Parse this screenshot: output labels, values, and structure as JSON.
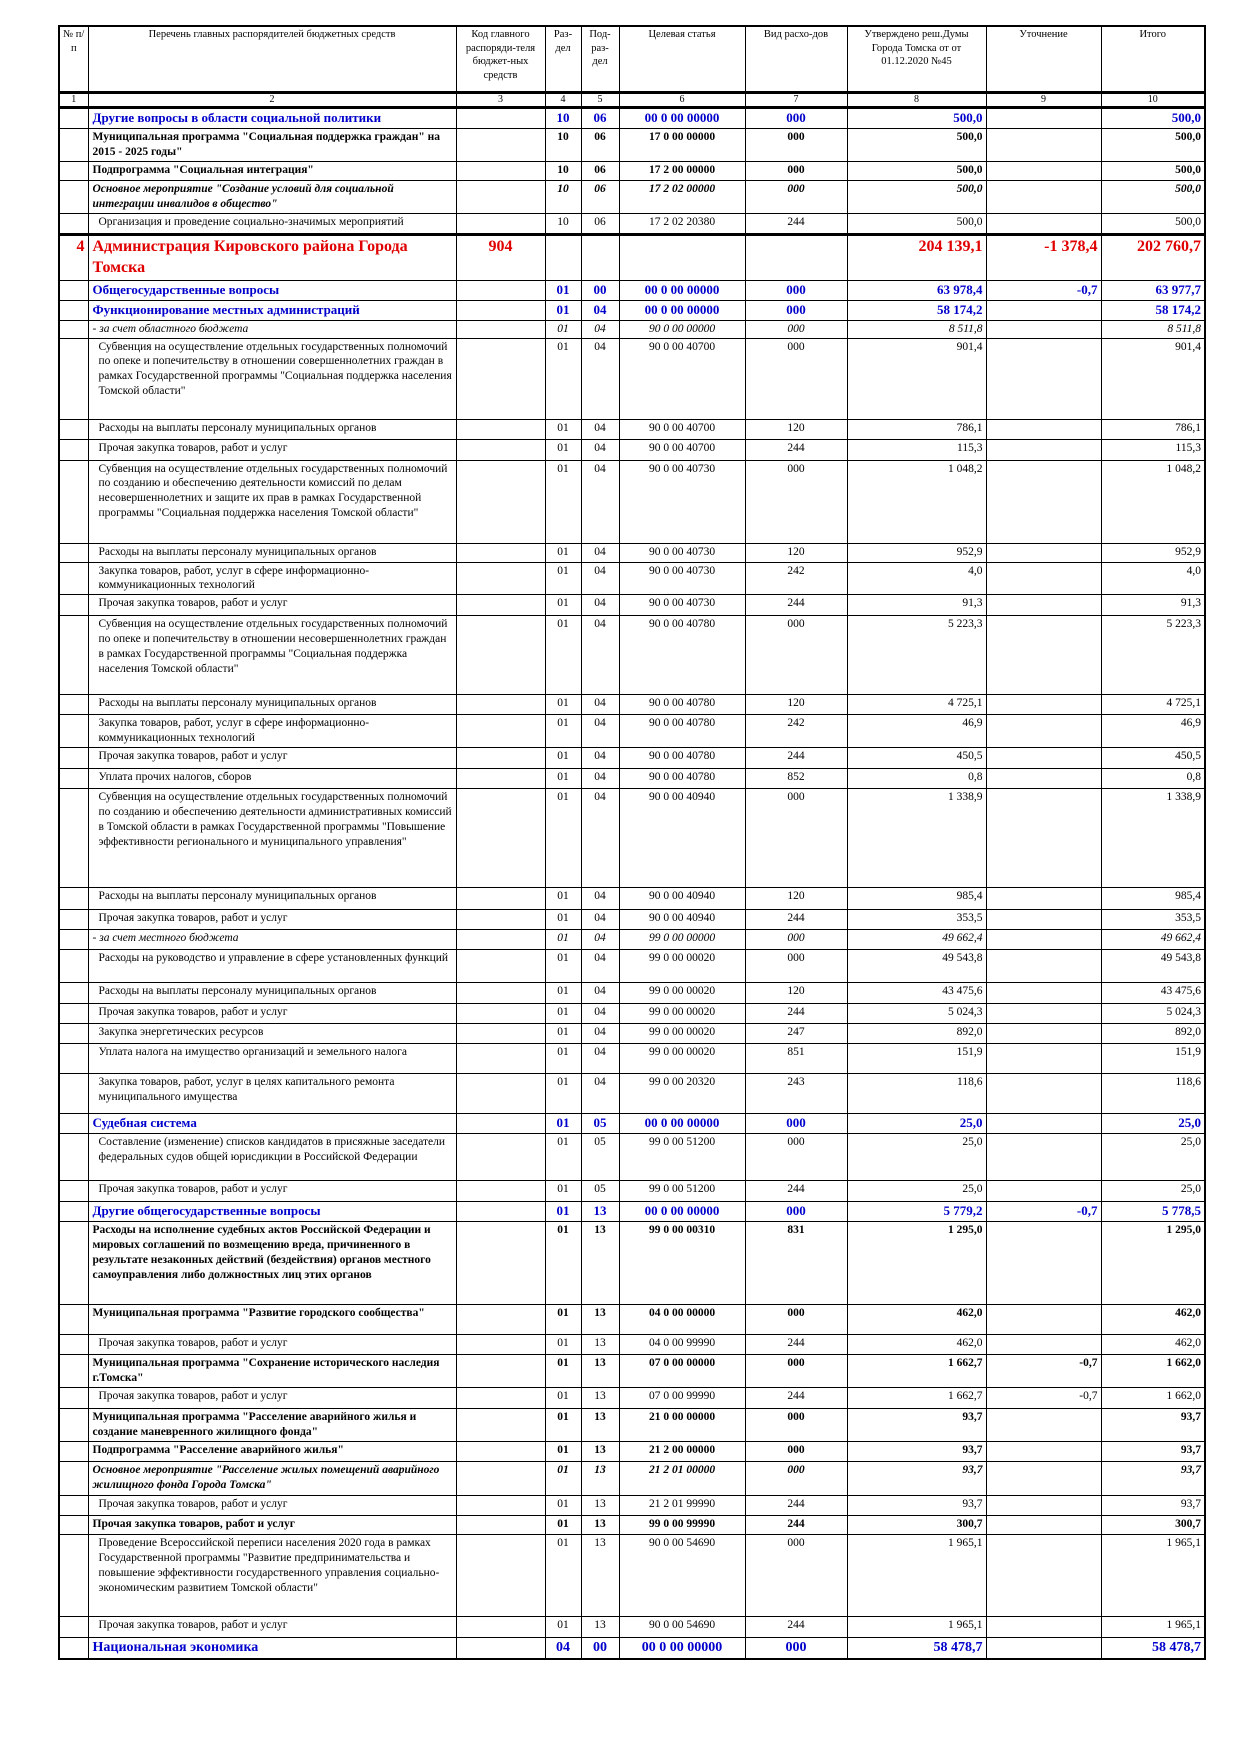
{
  "header": {
    "columns": [
      "№ п/п",
      "Перечень главных распорядителей бюджетных средств",
      "Код главного распоряди-теля бюджет-ных средств",
      "Раз-дел",
      "Под-раз-дел",
      "Целевая статья",
      "Вид расхо-дов",
      "Утверждено реш.Думы Города Томска от от 01.12.2020 №45",
      "Уточнение",
      "Итого"
    ],
    "numbers": [
      "1",
      "2",
      "3",
      "4",
      "5",
      "6",
      "7",
      "8",
      "9",
      "10"
    ]
  },
  "rows": [
    {
      "name": "Другие вопросы в области социальной политики",
      "section": "10",
      "subsection": "06",
      "target": "00 0 00 00000",
      "expense": "000",
      "approved": "500,0",
      "total": "500,0"
    },
    {
      "name": "Муниципальная программа \"Социальная поддержка граждан\" на 2015 - 2025 годы\"",
      "section": "10",
      "subsection": "06",
      "target": "17 0 00 00000",
      "expense": "000",
      "approved": "500,0",
      "total": "500,0"
    },
    {
      "name": "Подпрограмма \"Социальная интеграция\"",
      "section": "10",
      "subsection": "06",
      "target": "17 2 00 00000",
      "expense": "000",
      "approved": "500,0",
      "total": "500,0"
    },
    {
      "name": "Основное мероприятие \"Создание условий для социальной интеграции инвалидов в общество\"",
      "section": "10",
      "subsection": "06",
      "target": "17 2 02 00000",
      "expense": "000",
      "approved": "500,0",
      "total": "500,0"
    },
    {
      "name": "Организация и проведение социально-значимых мероприятий",
      "section": "10",
      "subsection": "06",
      "target": "17 2 02 20380",
      "expense": "244",
      "approved": "500,0",
      "total": "500,0"
    },
    {
      "n": "4",
      "name": "Администрация Кировского района Города Томска",
      "code": "904",
      "approved": "204 139,1",
      "change": "-1 378,4",
      "total": "202 760,7"
    },
    {
      "name": "Общегосударственные вопросы",
      "section": "01",
      "subsection": "00",
      "target": "00 0 00 00000",
      "expense": "000",
      "approved": "63 978,4",
      "change": "-0,7",
      "total": "63 977,7"
    },
    {
      "name": "Функционирование местных администраций",
      "section": "01",
      "subsection": "04",
      "target": "00 0 00 00000",
      "expense": "000",
      "approved": "58 174,2",
      "total": "58 174,2"
    },
    {
      "name": "- за счет областного бюджета",
      "section": "01",
      "subsection": "04",
      "target": "90 0 00 00000",
      "expense": "000",
      "approved": "8 511,8",
      "total": "8 511,8"
    },
    {
      "name": "Субвенция на осуществление отдельных государственных полномочий по опеке и попечительству в отношении совершеннолетних граждан в рамках Государственной программы \"Социальная поддержка населения Томской области\"",
      "section": "01",
      "subsection": "04",
      "target": "90 0 00 40700",
      "expense": "000",
      "approved": "901,4",
      "total": "901,4"
    },
    {
      "name": "Расходы на выплаты персоналу муниципальных органов",
      "section": "01",
      "subsection": "04",
      "target": "90 0 00 40700",
      "expense": "120",
      "approved": "786,1",
      "total": "786,1"
    },
    {
      "name": "Прочая закупка товаров, работ и услуг",
      "section": "01",
      "subsection": "04",
      "target": "90 0 00 40700",
      "expense": "244",
      "approved": "115,3",
      "total": "115,3"
    },
    {
      "name": "Субвенция на осуществление отдельных государственных полномочий по созданию и обеспечению деятельности комиссий по делам несовершеннолетних и защите их прав в рамках Государственной программы  \"Социальная поддержка населения Томской области\"",
      "section": "01",
      "subsection": "04",
      "target": "90 0 00 40730",
      "expense": "000",
      "approved": "1 048,2",
      "total": "1 048,2"
    },
    {
      "name": "Расходы на выплаты персоналу муниципальных органов",
      "section": "01",
      "subsection": "04",
      "target": "90 0 00 40730",
      "expense": "120",
      "approved": "952,9",
      "total": "952,9"
    },
    {
      "name": "Закупка товаров, работ, услуг в сфере информационно-коммуникационных технологий",
      "section": "01",
      "subsection": "04",
      "target": "90 0 00 40730",
      "expense": "242",
      "approved": "4,0",
      "total": "4,0"
    },
    {
      "name": "Прочая закупка товаров, работ и услуг",
      "section": "01",
      "subsection": "04",
      "target": "90 0 00 40730",
      "expense": "244",
      "approved": "91,3",
      "total": "91,3"
    },
    {
      "name": "Субвенция на осуществление отдельных государственных полномочий по опеке и попечительству в  отношении несовершеннолетних граждан в рамках Государственной программы \"Социальная поддержка населения Томской области\"",
      "section": "01",
      "subsection": "04",
      "target": "90 0 00 40780",
      "expense": "000",
      "approved": "5 223,3",
      "total": "5 223,3"
    },
    {
      "name": "Расходы на выплаты персоналу муниципальных органов",
      "section": "01",
      "subsection": "04",
      "target": "90 0 00 40780",
      "expense": "120",
      "approved": "4 725,1",
      "total": "4 725,1"
    },
    {
      "name": "Закупка товаров, работ, услуг в сфере информационно-коммуникационных технологий",
      "section": "01",
      "subsection": "04",
      "target": "90 0 00 40780",
      "expense": "242",
      "approved": "46,9",
      "total": "46,9"
    },
    {
      "name": "Прочая закупка товаров, работ и услуг",
      "section": "01",
      "subsection": "04",
      "target": "90 0 00 40780",
      "expense": "244",
      "approved": "450,5",
      "total": "450,5"
    },
    {
      "name": "Уплата прочих налогов, сборов",
      "section": "01",
      "subsection": "04",
      "target": "90 0 00 40780",
      "expense": "852",
      "approved": "0,8",
      "total": "0,8"
    },
    {
      "name": "Субвенция на осуществление отдельных государственных полномочий по созданию и обеспечению деятельности административных комиссий в Томской области в рамках Государственной программы \"Повышение эффективности регионального и муниципального управления\"",
      "section": "01",
      "subsection": "04",
      "target": "90 0 00 40940",
      "expense": "000",
      "approved": "1 338,9",
      "total": "1 338,9"
    },
    {
      "name": "Расходы на выплаты персоналу муниципальных органов",
      "section": "01",
      "subsection": "04",
      "target": "90 0 00 40940",
      "expense": "120",
      "approved": "985,4",
      "total": "985,4"
    },
    {
      "name": "Прочая закупка товаров, работ и услуг",
      "section": "01",
      "subsection": "04",
      "target": "90 0 00 40940",
      "expense": "244",
      "approved": "353,5",
      "total": "353,5"
    },
    {
      "name": "- за счет местного бюджета",
      "section": "01",
      "subsection": "04",
      "target": "99 0 00 00000",
      "expense": "000",
      "approved": "49 662,4",
      "total": "49 662,4"
    },
    {
      "name": "Расходы на руководство и управление в сфере установленных функций",
      "section": "01",
      "subsection": "04",
      "target": "99 0 00 00020",
      "expense": "000",
      "approved": "49 543,8",
      "total": "49 543,8"
    },
    {
      "name": "Расходы на выплаты персоналу муниципальных органов",
      "section": "01",
      "subsection": "04",
      "target": "99 0 00 00020",
      "expense": "120",
      "approved": "43 475,6",
      "total": "43 475,6"
    },
    {
      "name": "Прочая закупка товаров, работ и услуг",
      "section": "01",
      "subsection": "04",
      "target": "99 0 00 00020",
      "expense": "244",
      "approved": "5 024,3",
      "total": "5 024,3"
    },
    {
      "name": "Закупка энергетических ресурсов",
      "section": "01",
      "subsection": "04",
      "target": "99 0 00 00020",
      "expense": "247",
      "approved": "892,0",
      "total": "892,0"
    },
    {
      "name": "Уплата налога на имущество организаций и земельного налога",
      "section": "01",
      "subsection": "04",
      "target": "99 0 00 00020",
      "expense": "851",
      "approved": "151,9",
      "total": "151,9"
    },
    {
      "name": "Закупка товаров, работ, услуг в целях капитального ремонта муниципального имущества",
      "section": "01",
      "subsection": "04",
      "target": "99 0 00 20320",
      "expense": "243",
      "approved": "118,6",
      "total": "118,6"
    },
    {
      "name": "Судебная система",
      "section": "01",
      "subsection": "05",
      "target": "00 0 00 00000",
      "expense": "000",
      "approved": "25,0",
      "total": "25,0"
    },
    {
      "name": "Составление (изменение) списков кандидатов в присяжные заседатели федеральных судов общей юрисдикции в Российской Федерации",
      "section": "01",
      "subsection": "05",
      "target": "99 0 00 51200",
      "expense": "000",
      "approved": "25,0",
      "total": "25,0"
    },
    {
      "name": "Прочая закупка товаров, работ и услуг",
      "section": "01",
      "subsection": "05",
      "target": "99 0 00 51200",
      "expense": "244",
      "approved": "25,0",
      "total": "25,0"
    },
    {
      "name": "Другие общегосударственные вопросы",
      "section": "01",
      "subsection": "13",
      "target": "00 0 00 00000",
      "expense": "000",
      "approved": "5 779,2",
      "change": "-0,7",
      "total": "5 778,5"
    },
    {
      "name": "Расходы на исполнение судебных актов Российской Федерации и мировых соглашений по возмещению вреда, причиненного в результате незаконных действий (бездействия) органов местного самоуправления либо должностных лиц этих органов",
      "section": "01",
      "subsection": "13",
      "target": "99 0 00 00310",
      "expense": "831",
      "approved": "1 295,0",
      "total": "1 295,0"
    },
    {
      "name": "Муниципальная программа \"Развитие городского сообщества\"",
      "section": "01",
      "subsection": "13",
      "target": "04 0 00 00000",
      "expense": "000",
      "approved": "462,0",
      "total": "462,0"
    },
    {
      "name": "Прочая закупка товаров, работ и услуг",
      "section": "01",
      "subsection": "13",
      "target": "04 0 00 99990",
      "expense": "244",
      "approved": "462,0",
      "total": "462,0"
    },
    {
      "name": "Муниципальная программа \"Сохранение исторического наследия г.Томска\"",
      "section": "01",
      "subsection": "13",
      "target": "07 0 00 00000",
      "expense": "000",
      "approved": "1 662,7",
      "change": "-0,7",
      "total": "1 662,0"
    },
    {
      "name": "Прочая закупка товаров, работ и услуг",
      "section": "01",
      "subsection": "13",
      "target": "07 0 00 99990",
      "expense": "244",
      "approved": "1 662,7",
      "change": "-0,7",
      "total": "1 662,0"
    },
    {
      "name": "Муниципальная программа \"Расселение аварийного жилья и создание маневренного жилищного фонда\"",
      "section": "01",
      "subsection": "13",
      "target": "21 0 00 00000",
      "expense": "000",
      "approved": "93,7",
      "total": "93,7"
    },
    {
      "name": "Подпрограмма \"Расселение аварийного жилья\"",
      "section": "01",
      "subsection": "13",
      "target": "21 2 00 00000",
      "expense": "000",
      "approved": "93,7",
      "total": "93,7"
    },
    {
      "name": "Основное мероприятие \"Расселение жилых помещений аварийного жилищного фонда Города Томска\"",
      "section": "01",
      "subsection": "13",
      "target": "21 2 01 00000",
      "expense": "000",
      "approved": "93,7",
      "total": "93,7"
    },
    {
      "name": "Прочая закупка товаров, работ и услуг",
      "section": "01",
      "subsection": "13",
      "target": "21 2 01 99990",
      "expense": "244",
      "approved": "93,7",
      "total": "93,7"
    },
    {
      "name": "Прочая закупка товаров, работ и услуг",
      "section": "01",
      "subsection": "13",
      "target": "99 0 00 99990",
      "expense": "244",
      "approved": "300,7",
      "total": "300,7"
    },
    {
      "name": "Проведение Всероссийской переписи населения 2020 года в рамках Государственной программы \"Развитие предпринимательства и повышение эффективности государственного управления социально-экономическим развитием Томской области\"",
      "section": "01",
      "subsection": "13",
      "target": "90 0 00 54690",
      "expense": "000",
      "approved": "1 965,1",
      "total": "1 965,1"
    },
    {
      "name": "Прочая закупка товаров, работ и услуг",
      "section": "01",
      "subsection": "13",
      "target": "90 0 00 54690",
      "expense": "244",
      "approved": "1 965,1",
      "total": "1 965,1"
    },
    {
      "name": "Национальная экономика",
      "section": "04",
      "subsection": "00",
      "target": "00 0 00 00000",
      "expense": "000",
      "approved": "58 478,7",
      "total": "58 478,7"
    }
  ]
}
